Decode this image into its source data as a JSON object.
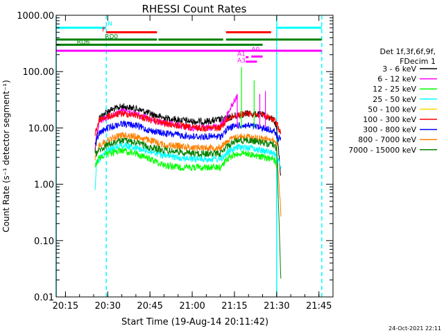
{
  "chart_data": {
    "type": "line",
    "title": "RHESSI Count Rates",
    "xlabel": "Start Time (19-Aug-14 20:11:42)",
    "ylabel": "Count Rate (s⁻¹ detector segment⁻¹)",
    "yscale": "log",
    "xlim": [
      "20:11:42",
      "21:50:00"
    ],
    "ylim": [
      0.01,
      1000
    ],
    "x_ticks": [
      "20:15",
      "20:30",
      "20:45",
      "21:00",
      "21:15",
      "21:30",
      "21:45"
    ],
    "y_ticks": [
      "1000.00",
      "100.00",
      "10.00",
      "1.00",
      "0.10",
      "0.01"
    ],
    "timestamp": "24-Oct-2021 22:11",
    "legend": {
      "placement": "right",
      "header": [
        "Det 1f,3f,6f,9f,",
        "FDecim 1"
      ],
      "entries": [
        {
          "name": "3 - 6 keV",
          "color": "#000000"
        },
        {
          "name": "6 - 12 keV",
          "color": "#ff00ff"
        },
        {
          "name": "12 - 25 keV",
          "color": "#00ff00"
        },
        {
          "name": "25 - 50 keV",
          "color": "#00ffff"
        },
        {
          "name": "50 - 100 keV",
          "color": "#ffd700"
        },
        {
          "name": "100 - 300 keV",
          "color": "#ff0000"
        },
        {
          "name": "300 - 800 keV",
          "color": "#0000ff"
        },
        {
          "name": "800 - 7000 keV",
          "color": "#ff8000"
        },
        {
          "name": "7000 - 15000 keV",
          "color": "#008000"
        }
      ]
    },
    "series": [
      {
        "name": "3 - 6 keV",
        "color": "#000000",
        "points": [
          [
            "20:25:30",
            4
          ],
          [
            "20:27",
            15
          ],
          [
            "20:30",
            20
          ],
          [
            "20:35",
            24
          ],
          [
            "20:40",
            22
          ],
          [
            "20:45",
            18
          ],
          [
            "20:50",
            15
          ],
          [
            "20:55",
            14
          ],
          [
            "21:00",
            13
          ],
          [
            "21:05",
            13
          ],
          [
            "21:10",
            14
          ],
          [
            "21:13",
            15
          ],
          [
            "21:16",
            17
          ],
          [
            "21:20",
            18
          ],
          [
            "21:25",
            17
          ],
          [
            "21:29",
            14
          ],
          [
            "21:30",
            10
          ],
          [
            "21:31:30",
            1.3
          ]
        ]
      },
      {
        "name": "6 - 12 keV",
        "color": "#ff00ff",
        "points": [
          [
            "20:25:30",
            5
          ],
          [
            "20:27",
            13
          ],
          [
            "20:30",
            16
          ],
          [
            "20:35",
            20
          ],
          [
            "20:40",
            18
          ],
          [
            "20:45",
            14
          ],
          [
            "20:50",
            12
          ],
          [
            "20:55",
            11
          ],
          [
            "21:00",
            10
          ],
          [
            "21:05",
            10
          ],
          [
            "21:10",
            11
          ],
          [
            "21:12",
            15
          ],
          [
            "21:14",
            25
          ],
          [
            "21:16",
            35
          ]
        ]
      },
      {
        "name": "100 - 300 keV",
        "color": "#ff0000",
        "points": [
          [
            "20:25:30",
            8
          ],
          [
            "20:27",
            14
          ],
          [
            "20:30",
            16
          ],
          [
            "20:35",
            18
          ],
          [
            "20:40",
            17
          ],
          [
            "20:45",
            14
          ],
          [
            "20:50",
            12
          ],
          [
            "20:55",
            11
          ],
          [
            "21:00",
            10
          ],
          [
            "21:05",
            10
          ],
          [
            "21:10",
            10
          ],
          [
            "21:13",
            15
          ],
          [
            "21:16",
            17
          ],
          [
            "21:20",
            18
          ],
          [
            "21:25",
            17
          ],
          [
            "21:29",
            14
          ],
          [
            "21:30",
            12
          ],
          [
            "21:31:30",
            8
          ]
        ]
      },
      {
        "name": "300 - 800 keV",
        "color": "#0000ff",
        "points": [
          [
            "20:25:30",
            5
          ],
          [
            "20:27",
            8
          ],
          [
            "20:30",
            10
          ],
          [
            "20:35",
            12
          ],
          [
            "20:40",
            11
          ],
          [
            "20:45",
            9
          ],
          [
            "20:50",
            8
          ],
          [
            "20:55",
            7.5
          ],
          [
            "21:00",
            7
          ],
          [
            "21:05",
            7
          ],
          [
            "21:10",
            7
          ],
          [
            "21:13",
            10
          ],
          [
            "21:16",
            11
          ],
          [
            "21:20",
            11
          ],
          [
            "21:25",
            10
          ],
          [
            "21:29",
            9
          ],
          [
            "21:30",
            7
          ],
          [
            "21:31:30",
            6
          ]
        ]
      },
      {
        "name": "800 - 7000 keV",
        "color": "#ff8000",
        "points": [
          [
            "20:25:30",
            3
          ],
          [
            "20:27",
            5
          ],
          [
            "20:30",
            6
          ],
          [
            "20:35",
            7.5
          ],
          [
            "20:40",
            7
          ],
          [
            "20:45",
            6
          ],
          [
            "20:50",
            5
          ],
          [
            "20:55",
            4.8
          ],
          [
            "21:00",
            4.5
          ],
          [
            "21:05",
            4.5
          ],
          [
            "21:10",
            4.5
          ],
          [
            "21:13",
            6
          ],
          [
            "21:16",
            7
          ],
          [
            "21:20",
            7
          ],
          [
            "21:25",
            6.5
          ],
          [
            "21:29",
            6
          ],
          [
            "21:30",
            5
          ],
          [
            "21:31:30",
            0.3
          ]
        ]
      },
      {
        "name": "25 - 50 keV",
        "color": "#00ffff",
        "points": [
          [
            "20:25:30",
            0.7
          ],
          [
            "20:26",
            2.5
          ],
          [
            "20:30",
            4
          ],
          [
            "20:35",
            5
          ],
          [
            "20:40",
            4.5
          ],
          [
            "20:45",
            3.8
          ],
          [
            "20:50",
            3.2
          ],
          [
            "20:55",
            3
          ],
          [
            "21:00",
            2.8
          ],
          [
            "21:05",
            2.8
          ],
          [
            "21:10",
            2.8
          ],
          [
            "21:13",
            3.8
          ],
          [
            "21:16",
            4.5
          ],
          [
            "21:20",
            4.5
          ],
          [
            "21:25",
            4
          ],
          [
            "21:29",
            3.5
          ],
          [
            "21:30",
            3
          ],
          [
            "21:31:30",
            2
          ]
        ]
      },
      {
        "name": "12 - 25 keV",
        "color": "#00ff00",
        "points": [
          [
            "20:25:30",
            2
          ],
          [
            "20:27",
            3
          ],
          [
            "20:30",
            3.5
          ],
          [
            "20:35",
            4
          ],
          [
            "20:40",
            3.5
          ],
          [
            "20:45",
            2.8
          ],
          [
            "20:50",
            2.2
          ],
          [
            "20:55",
            2
          ],
          [
            "21:00",
            2
          ],
          [
            "21:05",
            2
          ],
          [
            "21:10",
            2
          ],
          [
            "21:13",
            3
          ],
          [
            "21:16",
            3.5
          ],
          [
            "21:20",
            3.5
          ],
          [
            "21:25",
            3
          ],
          [
            "21:29",
            2.8
          ],
          [
            "21:30",
            2.2
          ]
        ]
      },
      {
        "name": "7000 - 15000 keV",
        "color": "#008000",
        "points": [
          [
            "20:25:30",
            3.5
          ],
          [
            "20:30",
            5
          ],
          [
            "20:35",
            6
          ],
          [
            "20:40",
            5.5
          ],
          [
            "20:45",
            4.5
          ],
          [
            "20:50",
            4
          ],
          [
            "20:55",
            3.8
          ],
          [
            "21:00",
            3.5
          ],
          [
            "21:05",
            3.5
          ],
          [
            "21:10",
            3.5
          ],
          [
            "21:13",
            5
          ],
          [
            "21:16",
            6
          ],
          [
            "21:20",
            6
          ],
          [
            "21:25",
            5.5
          ],
          [
            "21:29",
            5
          ],
          [
            "21:30",
            4
          ],
          [
            "21:31:30",
            0.02
          ]
        ]
      }
    ],
    "spikes": [
      {
        "time": "21:17:30",
        "peak": 120,
        "base": 10,
        "color": "#00ff00"
      },
      {
        "time": "21:16",
        "peak": 40,
        "base": 10,
        "color": "#ff00ff"
      },
      {
        "time": "21:22",
        "peak": 70,
        "base": 10,
        "color": "#00ff00"
      },
      {
        "time": "21:24",
        "peak": 40,
        "base": 10,
        "color": "#ff00ff"
      },
      {
        "time": "21:26",
        "peak": 45,
        "base": 10,
        "color": "#ff00ff"
      }
    ],
    "vertical_lines": [
      {
        "time": "20:11:42",
        "style": "solid",
        "color": "#00ffff"
      },
      {
        "time": "20:29:30",
        "style": "dashed",
        "color": "#00ffff"
      },
      {
        "time": "21:30",
        "style": "solid",
        "color": "#00ffff"
      },
      {
        "time": "21:46",
        "style": "dashed",
        "color": "#00ffff"
      }
    ],
    "flag_bars": [
      {
        "label": "N",
        "color": "#00ffff",
        "y": 600,
        "segments": [
          [
            "20:11:42",
            "20:29:30"
          ],
          [
            "21:30",
            "21:46"
          ]
        ],
        "label_time": "20:30",
        "label_y": 650
      },
      {
        "label": "F",
        "color": "#ff0000",
        "y": 500,
        "segments": [
          [
            "20:29:30",
            "20:47:30"
          ],
          [
            "21:12",
            "21:28"
          ]
        ],
        "label_time": "20:28",
        "label_y": 510
      },
      {
        "label": "RD0",
        "color": "#008000",
        "y": 370,
        "segments": [
          [
            "20:11:42",
            "20:47:30"
          ],
          [
            "20:48",
            "21:11"
          ],
          [
            "21:12",
            "21:30"
          ],
          [
            "21:30",
            "21:46"
          ]
        ],
        "label_time": "20:29",
        "label_y": 385
      },
      {
        "label": "RD6",
        "color": "#008000",
        "y": 300,
        "segments": [
          [
            "20:11:42",
            "21:25"
          ]
        ],
        "label_time": "20:19",
        "label_y": 310
      },
      {
        "label": "",
        "color": "#ff00ff",
        "y": 235,
        "segments": [
          [
            "20:11:42",
            "21:46"
          ]
        ]
      },
      {
        "label": "A1",
        "color": "#ff00ff",
        "y": 180,
        "segments": [
          [
            "21:19",
            "21:20"
          ]
        ],
        "label_time": "21:16",
        "label_y": 190
      },
      {
        "label": "A0",
        "color": "#ff00ff",
        "y": 185,
        "segments": [
          [
            "21:21",
            "21:25"
          ]
        ],
        "label_time": "21:21",
        "label_y": 230
      },
      {
        "label": "A3",
        "color": "#ff00ff",
        "y": 150,
        "segments": [
          [
            "21:19",
            "21:23"
          ]
        ],
        "label_time": "21:16",
        "label_y": 145
      }
    ]
  }
}
